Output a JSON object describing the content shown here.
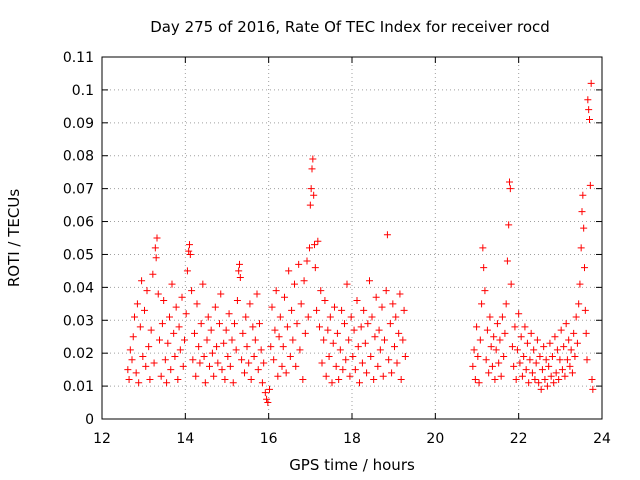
{
  "chart_data": {
    "type": "scatter",
    "title": "Day 275 of 2016, Rate Of TEC Index for receiver rocd",
    "xlabel": "GPS time / hours",
    "ylabel": "ROTI / TECUs",
    "xlim": [
      12,
      24
    ],
    "ylim": [
      0,
      0.11
    ],
    "xticks": [
      "12",
      "14",
      "16",
      "18",
      "20",
      "22",
      "24"
    ],
    "yticks": [
      "0",
      "0.01",
      "0.02",
      "0.03",
      "0.04",
      "0.05",
      "0.06",
      "0.07",
      "0.08",
      "0.09",
      "0.1",
      "0.11"
    ],
    "grid": true,
    "marker": "+",
    "color": "#ff0000",
    "series": [
      {
        "name": "ROTI",
        "points": [
          [
            12.62,
            0.015
          ],
          [
            12.65,
            0.012
          ],
          [
            12.68,
            0.021
          ],
          [
            12.72,
            0.018
          ],
          [
            12.75,
            0.025
          ],
          [
            12.78,
            0.031
          ],
          [
            12.82,
            0.014
          ],
          [
            12.85,
            0.035
          ],
          [
            12.88,
            0.011
          ],
          [
            12.92,
            0.028
          ],
          [
            12.95,
            0.042
          ],
          [
            12.98,
            0.019
          ],
          [
            13.02,
            0.033
          ],
          [
            13.05,
            0.016
          ],
          [
            13.08,
            0.039
          ],
          [
            13.12,
            0.022
          ],
          [
            13.15,
            0.012
          ],
          [
            13.18,
            0.027
          ],
          [
            13.22,
            0.044
          ],
          [
            13.25,
            0.017
          ],
          [
            13.28,
            0.052
          ],
          [
            13.3,
            0.049
          ],
          [
            13.32,
            0.055
          ],
          [
            13.35,
            0.038
          ],
          [
            13.38,
            0.024
          ],
          [
            13.42,
            0.013
          ],
          [
            13.45,
            0.029
          ],
          [
            13.48,
            0.036
          ],
          [
            13.52,
            0.018
          ],
          [
            13.55,
            0.011
          ],
          [
            13.58,
            0.023
          ],
          [
            13.62,
            0.031
          ],
          [
            13.65,
            0.015
          ],
          [
            13.68,
            0.041
          ],
          [
            13.72,
            0.026
          ],
          [
            13.75,
            0.019
          ],
          [
            13.78,
            0.034
          ],
          [
            13.82,
            0.012
          ],
          [
            13.85,
            0.028
          ],
          [
            13.88,
            0.021
          ],
          [
            13.92,
            0.037
          ],
          [
            13.95,
            0.016
          ],
          [
            13.98,
            0.024
          ],
          [
            14.02,
            0.032
          ],
          [
            14.05,
            0.045
          ],
          [
            14.08,
            0.051
          ],
          [
            14.1,
            0.053
          ],
          [
            14.12,
            0.05
          ],
          [
            14.15,
            0.039
          ],
          [
            14.18,
            0.018
          ],
          [
            14.22,
            0.026
          ],
          [
            14.25,
            0.013
          ],
          [
            14.28,
            0.035
          ],
          [
            14.32,
            0.022
          ],
          [
            14.35,
            0.017
          ],
          [
            14.38,
            0.029
          ],
          [
            14.42,
            0.041
          ],
          [
            14.45,
            0.019
          ],
          [
            14.48,
            0.011
          ],
          [
            14.52,
            0.024
          ],
          [
            14.55,
            0.031
          ],
          [
            14.58,
            0.016
          ],
          [
            14.62,
            0.027
          ],
          [
            14.65,
            0.02
          ],
          [
            14.68,
            0.013
          ],
          [
            14.72,
            0.034
          ],
          [
            14.75,
            0.022
          ],
          [
            14.78,
            0.017
          ],
          [
            14.82,
            0.029
          ],
          [
            14.85,
            0.038
          ],
          [
            14.88,
            0.015
          ],
          [
            14.92,
            0.023
          ],
          [
            14.95,
            0.012
          ],
          [
            14.98,
            0.027
          ],
          [
            15.02,
            0.019
          ],
          [
            15.05,
            0.032
          ],
          [
            15.08,
            0.016
          ],
          [
            15.12,
            0.024
          ],
          [
            15.15,
            0.011
          ],
          [
            15.18,
            0.029
          ],
          [
            15.22,
            0.021
          ],
          [
            15.25,
            0.036
          ],
          [
            15.28,
            0.045
          ],
          [
            15.3,
            0.047
          ],
          [
            15.32,
            0.043
          ],
          [
            15.35,
            0.018
          ],
          [
            15.38,
            0.026
          ],
          [
            15.42,
            0.014
          ],
          [
            15.45,
            0.031
          ],
          [
            15.48,
            0.022
          ],
          [
            15.52,
            0.017
          ],
          [
            15.55,
            0.035
          ],
          [
            15.58,
            0.012
          ],
          [
            15.62,
            0.028
          ],
          [
            15.65,
            0.019
          ],
          [
            15.68,
            0.024
          ],
          [
            15.72,
            0.038
          ],
          [
            15.75,
            0.015
          ],
          [
            15.78,
            0.029
          ],
          [
            15.82,
            0.021
          ],
          [
            15.85,
            0.011
          ],
          [
            15.88,
            0.017
          ],
          [
            15.92,
            0.008
          ],
          [
            15.95,
            0.006
          ],
          [
            15.98,
            0.005
          ],
          [
            16.02,
            0.009
          ],
          [
            16.05,
            0.022
          ],
          [
            16.08,
            0.034
          ],
          [
            16.12,
            0.018
          ],
          [
            16.15,
            0.027
          ],
          [
            16.18,
            0.039
          ],
          [
            16.22,
            0.013
          ],
          [
            16.25,
            0.025
          ],
          [
            16.28,
            0.031
          ],
          [
            16.32,
            0.016
          ],
          [
            16.35,
            0.022
          ],
          [
            16.38,
            0.037
          ],
          [
            16.42,
            0.014
          ],
          [
            16.45,
            0.028
          ],
          [
            16.48,
            0.045
          ],
          [
            16.52,
            0.019
          ],
          [
            16.55,
            0.033
          ],
          [
            16.58,
            0.024
          ],
          [
            16.62,
            0.041
          ],
          [
            16.65,
            0.016
          ],
          [
            16.68,
            0.029
          ],
          [
            16.72,
            0.047
          ],
          [
            16.75,
            0.021
          ],
          [
            16.78,
            0.035
          ],
          [
            16.82,
            0.012
          ],
          [
            16.85,
            0.042
          ],
          [
            16.88,
            0.026
          ],
          [
            16.92,
            0.048
          ],
          [
            16.95,
            0.031
          ],
          [
            16.98,
            0.052
          ],
          [
            17.0,
            0.065
          ],
          [
            17.02,
            0.07
          ],
          [
            17.04,
            0.076
          ],
          [
            17.06,
            0.079
          ],
          [
            17.08,
            0.068
          ],
          [
            17.1,
            0.053
          ],
          [
            17.12,
            0.046
          ],
          [
            17.15,
            0.033
          ],
          [
            17.18,
            0.054
          ],
          [
            17.22,
            0.028
          ],
          [
            17.25,
            0.039
          ],
          [
            17.28,
            0.017
          ],
          [
            17.32,
            0.024
          ],
          [
            17.35,
            0.036
          ],
          [
            17.38,
            0.013
          ],
          [
            17.42,
            0.027
          ],
          [
            17.45,
            0.019
          ],
          [
            17.48,
            0.031
          ],
          [
            17.52,
            0.011
          ],
          [
            17.55,
            0.023
          ],
          [
            17.58,
            0.034
          ],
          [
            17.62,
            0.016
          ],
          [
            17.65,
            0.026
          ],
          [
            17.68,
            0.012
          ],
          [
            17.72,
            0.021
          ],
          [
            17.75,
            0.033
          ],
          [
            17.78,
            0.015
          ],
          [
            17.82,
            0.029
          ],
          [
            17.85,
            0.018
          ],
          [
            17.88,
            0.041
          ],
          [
            17.92,
            0.024
          ],
          [
            17.95,
            0.013
          ],
          [
            17.98,
            0.031
          ],
          [
            18.02,
            0.019
          ],
          [
            18.05,
            0.027
          ],
          [
            18.08,
            0.015
          ],
          [
            18.12,
            0.036
          ],
          [
            18.15,
            0.022
          ],
          [
            18.18,
            0.011
          ],
          [
            18.22,
            0.028
          ],
          [
            18.25,
            0.017
          ],
          [
            18.28,
            0.033
          ],
          [
            18.32,
            0.023
          ],
          [
            18.35,
            0.014
          ],
          [
            18.38,
            0.029
          ],
          [
            18.42,
            0.042
          ],
          [
            18.45,
            0.019
          ],
          [
            18.48,
            0.031
          ],
          [
            18.52,
            0.012
          ],
          [
            18.55,
            0.025
          ],
          [
            18.58,
            0.037
          ],
          [
            18.62,
            0.016
          ],
          [
            18.65,
            0.027
          ],
          [
            18.68,
            0.021
          ],
          [
            18.72,
            0.034
          ],
          [
            18.75,
            0.013
          ],
          [
            18.78,
            0.024
          ],
          [
            18.82,
            0.039
          ],
          [
            18.85,
            0.056
          ],
          [
            18.88,
            0.018
          ],
          [
            18.92,
            0.029
          ],
          [
            18.95,
            0.014
          ],
          [
            18.98,
            0.035
          ],
          [
            19.02,
            0.022
          ],
          [
            19.05,
            0.031
          ],
          [
            19.08,
            0.017
          ],
          [
            19.12,
            0.026
          ],
          [
            19.15,
            0.038
          ],
          [
            19.18,
            0.012
          ],
          [
            19.22,
            0.024
          ],
          [
            19.25,
            0.033
          ],
          [
            19.28,
            0.019
          ],
          [
            20.9,
            0.016
          ],
          [
            20.93,
            0.021
          ],
          [
            20.96,
            0.012
          ],
          [
            20.99,
            0.028
          ],
          [
            21.02,
            0.019
          ],
          [
            21.05,
            0.011
          ],
          [
            21.08,
            0.024
          ],
          [
            21.11,
            0.035
          ],
          [
            21.14,
            0.052
          ],
          [
            21.16,
            0.046
          ],
          [
            21.19,
            0.039
          ],
          [
            21.22,
            0.018
          ],
          [
            21.25,
            0.027
          ],
          [
            21.28,
            0.014
          ],
          [
            21.31,
            0.031
          ],
          [
            21.34,
            0.022
          ],
          [
            21.37,
            0.016
          ],
          [
            21.4,
            0.025
          ],
          [
            21.43,
            0.012
          ],
          [
            21.46,
            0.021
          ],
          [
            21.49,
            0.029
          ],
          [
            21.52,
            0.017
          ],
          [
            21.55,
            0.024
          ],
          [
            21.58,
            0.013
          ],
          [
            21.61,
            0.031
          ],
          [
            21.64,
            0.019
          ],
          [
            21.67,
            0.026
          ],
          [
            21.7,
            0.035
          ],
          [
            21.73,
            0.048
          ],
          [
            21.76,
            0.059
          ],
          [
            21.78,
            0.072
          ],
          [
            21.8,
            0.07
          ],
          [
            21.82,
            0.041
          ],
          [
            21.85,
            0.022
          ],
          [
            21.88,
            0.016
          ],
          [
            21.91,
            0.028
          ],
          [
            21.94,
            0.012
          ],
          [
            21.97,
            0.021
          ],
          [
            22.0,
            0.032
          ],
          [
            22.03,
            0.017
          ],
          [
            22.06,
            0.025
          ],
          [
            22.09,
            0.013
          ],
          [
            22.12,
            0.019
          ],
          [
            22.15,
            0.028
          ],
          [
            22.18,
            0.015
          ],
          [
            22.21,
            0.023
          ],
          [
            22.24,
            0.011
          ],
          [
            22.27,
            0.018
          ],
          [
            22.3,
            0.026
          ],
          [
            22.33,
            0.014
          ],
          [
            22.36,
            0.021
          ],
          [
            22.39,
            0.012
          ],
          [
            22.42,
            0.017
          ],
          [
            22.45,
            0.024
          ],
          [
            22.48,
            0.011
          ],
          [
            22.51,
            0.019
          ],
          [
            22.54,
            0.009
          ],
          [
            22.57,
            0.015
          ],
          [
            22.6,
            0.022
          ],
          [
            22.63,
            0.012
          ],
          [
            22.66,
            0.018
          ],
          [
            22.69,
            0.01
          ],
          [
            22.72,
            0.016
          ],
          [
            22.75,
            0.023
          ],
          [
            22.78,
            0.013
          ],
          [
            22.81,
            0.019
          ],
          [
            22.84,
            0.011
          ],
          [
            22.87,
            0.025
          ],
          [
            22.9,
            0.014
          ],
          [
            22.93,
            0.021
          ],
          [
            22.96,
            0.012
          ],
          [
            22.99,
            0.018
          ],
          [
            23.02,
            0.027
          ],
          [
            23.05,
            0.015
          ],
          [
            23.08,
            0.022
          ],
          [
            23.11,
            0.013
          ],
          [
            23.14,
            0.029
          ],
          [
            23.17,
            0.018
          ],
          [
            23.2,
            0.024
          ],
          [
            23.23,
            0.016
          ],
          [
            23.26,
            0.021
          ],
          [
            23.29,
            0.014
          ],
          [
            23.32,
            0.026
          ],
          [
            23.35,
            0.019
          ],
          [
            23.38,
            0.031
          ],
          [
            23.41,
            0.023
          ],
          [
            23.44,
            0.035
          ],
          [
            23.47,
            0.041
          ],
          [
            23.5,
            0.052
          ],
          [
            23.52,
            0.063
          ],
          [
            23.54,
            0.068
          ],
          [
            23.56,
            0.058
          ],
          [
            23.58,
            0.046
          ],
          [
            23.6,
            0.033
          ],
          [
            23.62,
            0.026
          ],
          [
            23.64,
            0.018
          ],
          [
            23.66,
            0.097
          ],
          [
            23.68,
            0.094
          ],
          [
            23.7,
            0.091
          ],
          [
            23.72,
            0.071
          ],
          [
            23.74,
            0.102
          ],
          [
            23.76,
            0.012
          ],
          [
            23.78,
            0.009
          ]
        ]
      }
    ]
  }
}
